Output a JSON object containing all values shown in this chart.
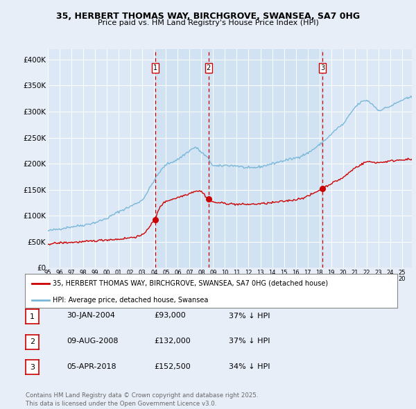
{
  "title_line1": "35, HERBERT THOMAS WAY, BIRCHGROVE, SWANSEA, SA7 0HG",
  "title_line2": "Price paid vs. HM Land Registry's House Price Index (HPI)",
  "xlim_start": 1995.0,
  "xlim_end": 2025.83,
  "ylim_min": 0,
  "ylim_max": 420000,
  "yticks": [
    0,
    50000,
    100000,
    150000,
    200000,
    250000,
    300000,
    350000,
    400000
  ],
  "ytick_labels": [
    "£0",
    "£50K",
    "£100K",
    "£150K",
    "£200K",
    "£250K",
    "£300K",
    "£350K",
    "£400K"
  ],
  "xticks": [
    1995,
    1996,
    1997,
    1998,
    1999,
    2000,
    2001,
    2002,
    2003,
    2004,
    2005,
    2006,
    2007,
    2008,
    2009,
    2010,
    2011,
    2012,
    2013,
    2014,
    2015,
    2016,
    2017,
    2018,
    2019,
    2020,
    2021,
    2022,
    2023,
    2024,
    2025
  ],
  "background_color": "#e8eef8",
  "plot_bg_color": "#dce8f5",
  "grid_color": "#ffffff",
  "hpi_color": "#7ab8d9",
  "sold_color": "#cc0000",
  "marker_color": "#cc0000",
  "dashed_line_color": "#cc0000",
  "sale_dates_decimal": [
    2004.08,
    2008.6,
    2018.26
  ],
  "sale_prices": [
    93000,
    132000,
    152500
  ],
  "sale_labels": [
    "1",
    "2",
    "3"
  ],
  "legend_line1": "35, HERBERT THOMAS WAY, BIRCHGROVE, SWANSEA, SA7 0HG (detached house)",
  "legend_line2": "HPI: Average price, detached house, Swansea",
  "table_rows": [
    [
      "1",
      "30-JAN-2004",
      "£93,000",
      "37% ↓ HPI"
    ],
    [
      "2",
      "09-AUG-2008",
      "£132,000",
      "37% ↓ HPI"
    ],
    [
      "3",
      "05-APR-2018",
      "£152,500",
      "34% ↓ HPI"
    ]
  ],
  "footer_text": "Contains HM Land Registry data © Crown copyright and database right 2025.\nThis data is licensed under the Open Government Licence v3.0."
}
